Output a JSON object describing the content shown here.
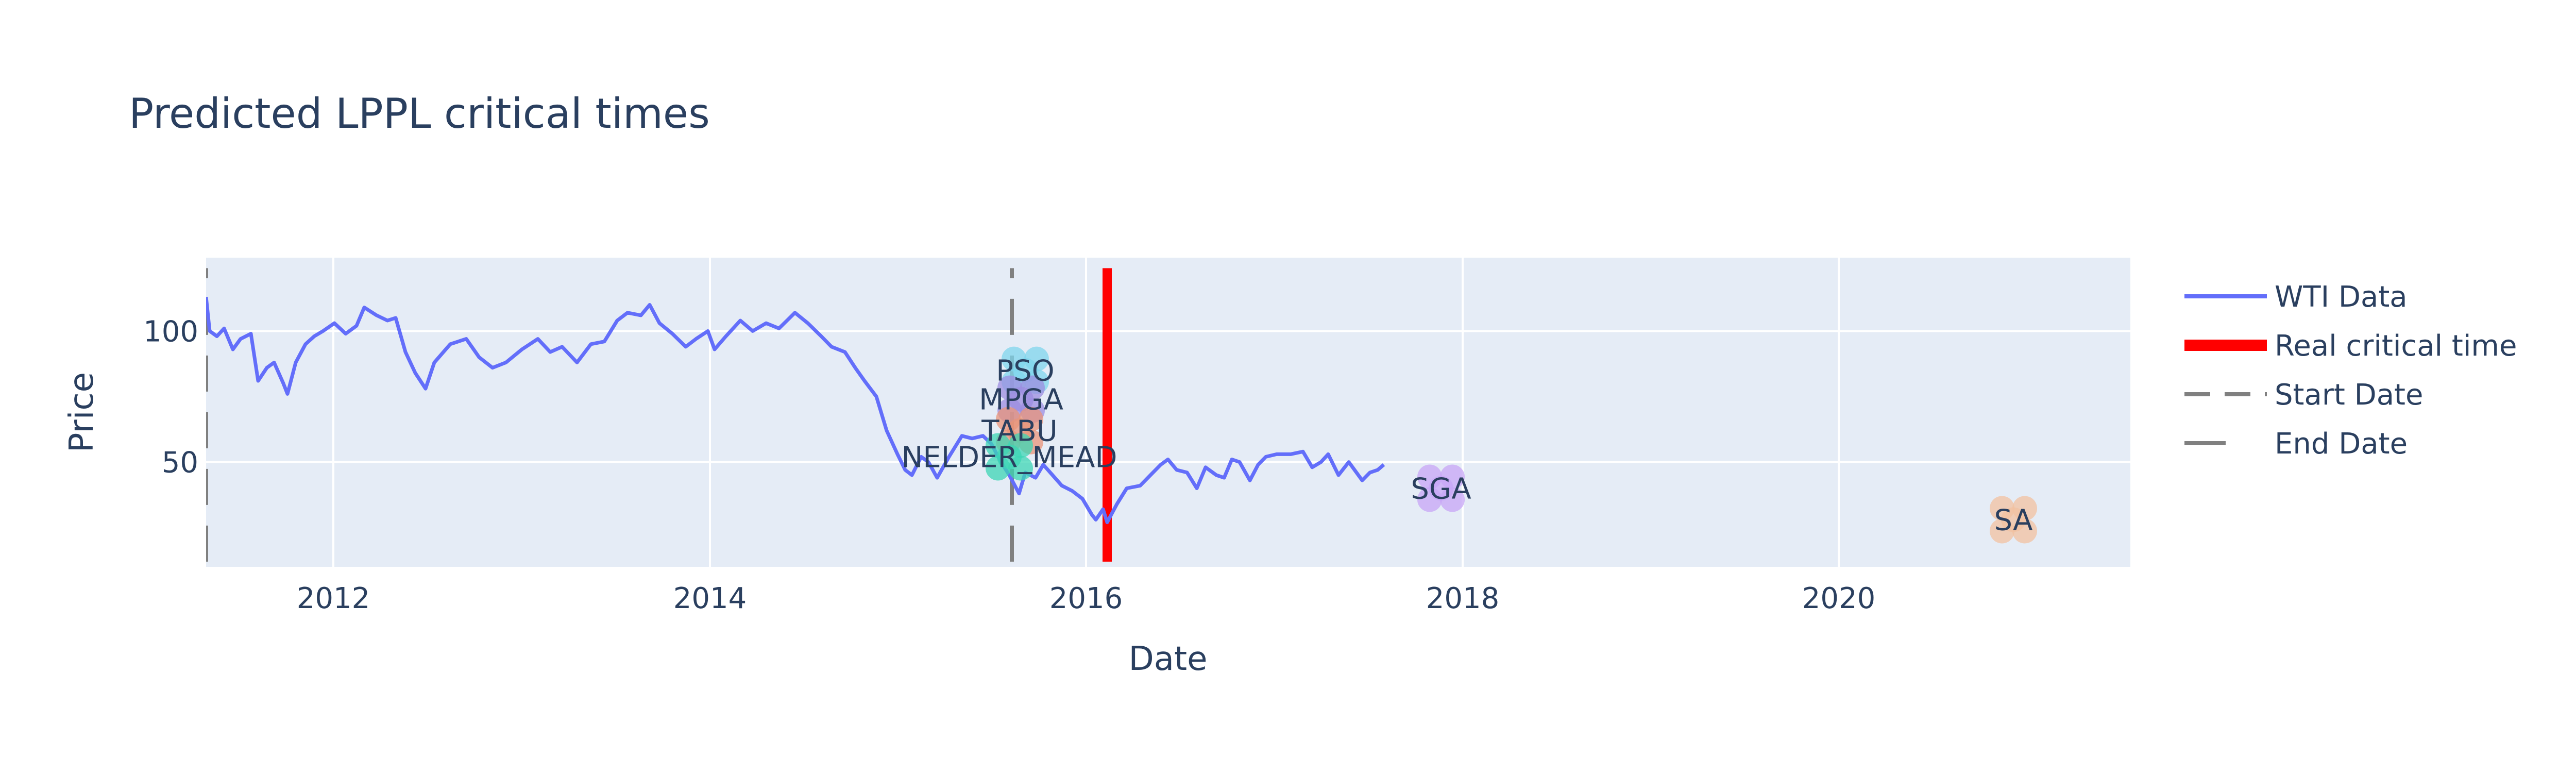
{
  "chart_data": {
    "type": "line",
    "title": "Predicted LPPL critical times",
    "xlabel": "Date",
    "ylabel": "Price",
    "xlim": [
      "2011-04-29",
      "2021-07-20"
    ],
    "ylim": [
      10,
      128
    ],
    "x_ticks": [
      {
        "date": "2012-01-01",
        "label": "2012"
      },
      {
        "date": "2014-01-01",
        "label": "2014"
      },
      {
        "date": "2016-01-01",
        "label": "2016"
      },
      {
        "date": "2018-01-01",
        "label": "2018"
      },
      {
        "date": "2020-01-01",
        "label": "2020"
      }
    ],
    "y_ticks": [
      {
        "value": 50,
        "label": "50"
      },
      {
        "value": 100,
        "label": "100"
      }
    ],
    "grid": true,
    "legend_position": "right",
    "series": [
      {
        "name": "WTI Data",
        "color": "#636efa",
        "points": [
          [
            "2011-04-29",
            113
          ],
          [
            "2011-05-06",
            100
          ],
          [
            "2011-05-20",
            98
          ],
          [
            "2011-06-03",
            101
          ],
          [
            "2011-06-20",
            93
          ],
          [
            "2011-07-05",
            97
          ],
          [
            "2011-07-25",
            99
          ],
          [
            "2011-08-08",
            81
          ],
          [
            "2011-08-25",
            86
          ],
          [
            "2011-09-08",
            88
          ],
          [
            "2011-09-26",
            80
          ],
          [
            "2011-10-04",
            76
          ],
          [
            "2011-10-20",
            88
          ],
          [
            "2011-11-08",
            95
          ],
          [
            "2011-11-25",
            98
          ],
          [
            "2011-12-12",
            100
          ],
          [
            "2012-01-03",
            103
          ],
          [
            "2012-01-25",
            99
          ],
          [
            "2012-02-15",
            102
          ],
          [
            "2012-03-01",
            109
          ],
          [
            "2012-03-25",
            106
          ],
          [
            "2012-04-15",
            104
          ],
          [
            "2012-05-01",
            105
          ],
          [
            "2012-05-20",
            92
          ],
          [
            "2012-06-08",
            84
          ],
          [
            "2012-06-28",
            78
          ],
          [
            "2012-07-15",
            88
          ],
          [
            "2012-08-15",
            95
          ],
          [
            "2012-09-15",
            97
          ],
          [
            "2012-10-10",
            90
          ],
          [
            "2012-11-05",
            86
          ],
          [
            "2012-12-01",
            88
          ],
          [
            "2013-01-01",
            93
          ],
          [
            "2013-02-01",
            97
          ],
          [
            "2013-02-25",
            92
          ],
          [
            "2013-03-20",
            94
          ],
          [
            "2013-04-18",
            88
          ],
          [
            "2013-05-15",
            95
          ],
          [
            "2013-06-10",
            96
          ],
          [
            "2013-07-05",
            104
          ],
          [
            "2013-07-25",
            107
          ],
          [
            "2013-08-20",
            106
          ],
          [
            "2013-09-06",
            110
          ],
          [
            "2013-09-25",
            103
          ],
          [
            "2013-10-20",
            99
          ],
          [
            "2013-11-15",
            94
          ],
          [
            "2013-12-05",
            97
          ],
          [
            "2013-12-28",
            100
          ],
          [
            "2014-01-10",
            93
          ],
          [
            "2014-02-01",
            98
          ],
          [
            "2014-03-01",
            104
          ],
          [
            "2014-03-25",
            100
          ],
          [
            "2014-04-20",
            103
          ],
          [
            "2014-05-15",
            101
          ],
          [
            "2014-06-15",
            107
          ],
          [
            "2014-07-10",
            103
          ],
          [
            "2014-08-05",
            98
          ],
          [
            "2014-08-25",
            94
          ],
          [
            "2014-09-20",
            92
          ],
          [
            "2014-10-10",
            86
          ],
          [
            "2014-10-28",
            81
          ],
          [
            "2014-11-20",
            75
          ],
          [
            "2014-12-10",
            62
          ],
          [
            "2014-12-31",
            53
          ],
          [
            "2015-01-15",
            47
          ],
          [
            "2015-01-28",
            45
          ],
          [
            "2015-02-15",
            52
          ],
          [
            "2015-03-01",
            50
          ],
          [
            "2015-03-18",
            44
          ],
          [
            "2015-04-10",
            52
          ],
          [
            "2015-05-05",
            60
          ],
          [
            "2015-05-25",
            59
          ],
          [
            "2015-06-15",
            60
          ],
          [
            "2015-07-01",
            57
          ],
          [
            "2015-07-20",
            50
          ],
          [
            "2015-08-05",
            45
          ],
          [
            "2015-08-24",
            38
          ],
          [
            "2015-09-05",
            46
          ],
          [
            "2015-09-25",
            44
          ],
          [
            "2015-10-10",
            49
          ],
          [
            "2015-10-28",
            45
          ],
          [
            "2015-11-15",
            41
          ],
          [
            "2015-12-05",
            39
          ],
          [
            "2015-12-25",
            36
          ],
          [
            "2016-01-12",
            30
          ],
          [
            "2016-01-20",
            28
          ],
          [
            "2016-02-03",
            32
          ],
          [
            "2016-02-11",
            27
          ],
          [
            "2016-03-01",
            34
          ],
          [
            "2016-03-20",
            40
          ],
          [
            "2016-04-15",
            41
          ],
          [
            "2016-05-05",
            45
          ],
          [
            "2016-05-25",
            49
          ],
          [
            "2016-06-08",
            51
          ],
          [
            "2016-06-25",
            47
          ],
          [
            "2016-07-15",
            46
          ],
          [
            "2016-08-03",
            40
          ],
          [
            "2016-08-20",
            48
          ],
          [
            "2016-09-10",
            45
          ],
          [
            "2016-09-25",
            44
          ],
          [
            "2016-10-10",
            51
          ],
          [
            "2016-10-25",
            50
          ],
          [
            "2016-11-14",
            43
          ],
          [
            "2016-11-30",
            49
          ],
          [
            "2016-12-15",
            52
          ],
          [
            "2017-01-05",
            53
          ],
          [
            "2017-02-01",
            53
          ],
          [
            "2017-02-25",
            54
          ],
          [
            "2017-03-15",
            48
          ],
          [
            "2017-04-01",
            50
          ],
          [
            "2017-04-15",
            53
          ],
          [
            "2017-05-05",
            45
          ],
          [
            "2017-05-25",
            50
          ],
          [
            "2017-06-20",
            43
          ],
          [
            "2017-07-05",
            46
          ],
          [
            "2017-07-20",
            47
          ],
          [
            "2017-08-01",
            49
          ]
        ]
      }
    ],
    "reference_lines": [
      {
        "name": "Real critical time",
        "date": "2016-02-11",
        "style": "solid",
        "color": "#ff0000",
        "y_range": [
          12,
          124
        ]
      },
      {
        "name": "Start Date",
        "date": "2011-04-29",
        "style": "dash",
        "color": "#808080",
        "y_range": [
          12,
          124
        ]
      },
      {
        "name": "End Date",
        "date": "2015-08-10",
        "style": "dash",
        "color": "#808080",
        "y_range": [
          12,
          124
        ]
      }
    ],
    "predictions": [
      {
        "label": "PSO",
        "date": "2015-09-05",
        "value": 85,
        "color": "#7fd6ec"
      },
      {
        "label": "MPGA",
        "date": "2015-08-28",
        "value": 74,
        "color": "#9c8ee0"
      },
      {
        "label": "TABU",
        "date": "2015-08-25",
        "value": 62,
        "color": "#e8947a"
      },
      {
        "label": "NELDER_MEAD",
        "date": "2015-08-05",
        "value": 52,
        "color": "#3cd6b4"
      },
      {
        "label": "SGA",
        "date": "2017-11-20",
        "value": 40,
        "color": "#c7a6f5"
      },
      {
        "label": "SA",
        "date": "2020-12-05",
        "value": 28,
        "color": "#f2c2a0"
      }
    ]
  },
  "legend": [
    {
      "label": "WTI Data",
      "style": "solid",
      "color": "#636efa"
    },
    {
      "label": "Real critical time",
      "style": "thick",
      "color": "#ff0000"
    },
    {
      "label": "Start Date",
      "style": "dash",
      "color": "#808080"
    },
    {
      "label": "End Date",
      "style": "longdash",
      "color": "#808080"
    }
  ]
}
